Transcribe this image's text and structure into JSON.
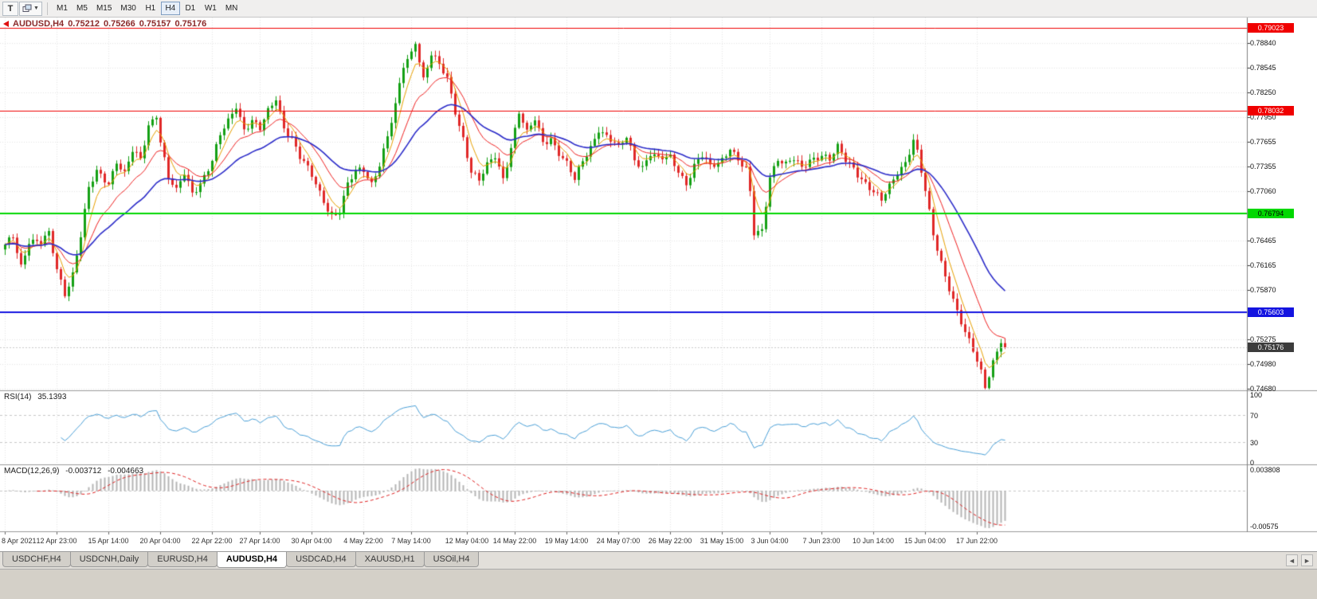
{
  "toolbar": {
    "templates_button": "T",
    "timeframes": [
      "M1",
      "M5",
      "M15",
      "M30",
      "H1",
      "H4",
      "D1",
      "W1",
      "MN"
    ],
    "active_timeframe": "H4"
  },
  "chart_header": {
    "symbol_timeframe": "AUDUSD,H4",
    "open": "0.75212",
    "high": "0.75266",
    "low": "0.75157",
    "close": "0.75176"
  },
  "tabs": {
    "items": [
      "USDCHF,H4",
      "USDCNH,Daily",
      "EURUSD,H4",
      "AUDUSD,H4",
      "USDCAD,H4",
      "XAUUSD,H1",
      "USOil,H4"
    ],
    "active": "AUDUSD,H4"
  },
  "chart_data": {
    "type": "candlestick",
    "symbol": "AUDUSD",
    "timeframe": "H4",
    "bar_count": 252,
    "colors": {
      "up": "#14a014",
      "down": "#e02828",
      "rsi": "#4aa0d8",
      "macd_histogram": "#b5b5b5",
      "macd_signal": "#e02020",
      "grid": "#e6e6e6",
      "background": "#ffffff"
    },
    "y_axis": {
      "price_max": 0.7915,
      "price_min": 0.7467,
      "tick_labels": [
        "0.78840",
        "0.78545",
        "0.78250",
        "0.77950",
        "0.77655",
        "0.77355",
        "0.77060",
        "0.76465",
        "0.76165",
        "0.75870",
        "0.75275",
        "0.74980",
        "0.74680"
      ]
    },
    "x_axis": {
      "labels": [
        [
          "8 Apr 2021",
          0
        ],
        [
          "12 Apr 23:00",
          13
        ],
        [
          "15 Apr 14:00",
          26
        ],
        [
          "20 Apr 04:00",
          39
        ],
        [
          "22 Apr 22:00",
          52
        ],
        [
          "27 Apr 14:00",
          64
        ],
        [
          "30 Apr 04:00",
          77
        ],
        [
          "4 May 22:00",
          90
        ],
        [
          "7 May 14:00",
          102
        ],
        [
          "12 May 04:00",
          116
        ],
        [
          "14 May 22:00",
          128
        ],
        [
          "19 May 14:00",
          141
        ],
        [
          "24 May 07:00",
          154
        ],
        [
          "26 May 22:00",
          167
        ],
        [
          "31 May 15:00",
          180
        ],
        [
          "3 Jun 04:00",
          192
        ],
        [
          "7 Jun 23:00",
          205
        ],
        [
          "10 Jun 14:00",
          218
        ],
        [
          "15 Jun 04:00",
          231
        ],
        [
          "17 Jun 22:00",
          244
        ]
      ]
    },
    "horizontal_lines": [
      {
        "price": 0.79023,
        "label": "0.79023",
        "color": "#f00000",
        "width": 1
      },
      {
        "price": 0.78032,
        "label": "0.78032",
        "color": "#f00000",
        "width": 1
      },
      {
        "price": 0.76794,
        "label": "0.76794",
        "color": "#00d800",
        "width": 2
      },
      {
        "price": 0.75603,
        "label": "0.75603",
        "color": "#1414e0",
        "width": 2
      }
    ],
    "current_price": {
      "value": 0.75176,
      "label": "0.75176",
      "box_color": "#3c3c3c"
    },
    "moving_averages": [
      {
        "period": 5,
        "color": "#e8a000",
        "width": 1
      },
      {
        "period": 13,
        "color": "#f02020",
        "width": 1
      },
      {
        "period": 30,
        "color": "#2c2cc9",
        "width": 1.6
      }
    ],
    "price_waypoints": [
      [
        0,
        0.7638
      ],
      [
        2,
        0.7652
      ],
      [
        4,
        0.7618
      ],
      [
        6,
        0.7648
      ],
      [
        9,
        0.7642
      ],
      [
        11,
        0.7652
      ],
      [
        13,
        0.7612
      ],
      [
        15,
        0.7585
      ],
      [
        17,
        0.7608
      ],
      [
        19,
        0.7652
      ],
      [
        21,
        0.7706
      ],
      [
        23,
        0.7728
      ],
      [
        26,
        0.7718
      ],
      [
        28,
        0.7744
      ],
      [
        30,
        0.7726
      ],
      [
        32,
        0.7752
      ],
      [
        34,
        0.7742
      ],
      [
        36,
        0.7786
      ],
      [
        38,
        0.7801
      ],
      [
        39,
        0.7768
      ],
      [
        41,
        0.7722
      ],
      [
        43,
        0.7703
      ],
      [
        45,
        0.7726
      ],
      [
        47,
        0.7705
      ],
      [
        49,
        0.7718
      ],
      [
        52,
        0.7742
      ],
      [
        54,
        0.7771
      ],
      [
        56,
        0.7788
      ],
      [
        58,
        0.781
      ],
      [
        60,
        0.7783
      ],
      [
        62,
        0.7792
      ],
      [
        64,
        0.7779
      ],
      [
        66,
        0.7799
      ],
      [
        68,
        0.7817
      ],
      [
        70,
        0.7785
      ],
      [
        72,
        0.7772
      ],
      [
        74,
        0.7747
      ],
      [
        77,
        0.7722
      ],
      [
        79,
        0.7703
      ],
      [
        82,
        0.7679
      ],
      [
        84,
        0.7683
      ],
      [
        86,
        0.7712
      ],
      [
        88,
        0.7727
      ],
      [
        90,
        0.7731
      ],
      [
        92,
        0.7717
      ],
      [
        94,
        0.7741
      ],
      [
        96,
        0.7771
      ],
      [
        98,
        0.7806
      ],
      [
        100,
        0.7855
      ],
      [
        102,
        0.7873
      ],
      [
        103,
        0.7889
      ],
      [
        105,
        0.7843
      ],
      [
        107,
        0.7871
      ],
      [
        109,
        0.7855
      ],
      [
        111,
        0.7839
      ],
      [
        113,
        0.7803
      ],
      [
        115,
        0.7772
      ],
      [
        117,
        0.7731
      ],
      [
        119,
        0.7717
      ],
      [
        121,
        0.7734
      ],
      [
        123,
        0.7748
      ],
      [
        125,
        0.7723
      ],
      [
        127,
        0.7761
      ],
      [
        129,
        0.7801
      ],
      [
        131,
        0.7773
      ],
      [
        133,
        0.7791
      ],
      [
        135,
        0.7766
      ],
      [
        137,
        0.7772
      ],
      [
        139,
        0.7753
      ],
      [
        141,
        0.7737
      ],
      [
        143,
        0.7717
      ],
      [
        145,
        0.7742
      ],
      [
        147,
        0.7761
      ],
      [
        149,
        0.7783
      ],
      [
        151,
        0.7771
      ],
      [
        154,
        0.7756
      ],
      [
        156,
        0.7771
      ],
      [
        158,
        0.7747
      ],
      [
        160,
        0.7737
      ],
      [
        162,
        0.7751
      ],
      [
        164,
        0.7742
      ],
      [
        167,
        0.7746
      ],
      [
        169,
        0.7733
      ],
      [
        171,
        0.7717
      ],
      [
        173,
        0.7736
      ],
      [
        175,
        0.7746
      ],
      [
        177,
        0.7733
      ],
      [
        180,
        0.7746
      ],
      [
        182,
        0.7761
      ],
      [
        184,
        0.7743
      ],
      [
        186,
        0.7729
      ],
      [
        187,
        0.7701
      ],
      [
        188,
        0.7653
      ],
      [
        190,
        0.7659
      ],
      [
        192,
        0.7727
      ],
      [
        194,
        0.7746
      ],
      [
        196,
        0.7736
      ],
      [
        198,
        0.7742
      ],
      [
        200,
        0.7733
      ],
      [
        202,
        0.7746
      ],
      [
        205,
        0.7751
      ],
      [
        207,
        0.7742
      ],
      [
        209,
        0.7756
      ],
      [
        211,
        0.7743
      ],
      [
        213,
        0.7736
      ],
      [
        215,
        0.7723
      ],
      [
        218,
        0.7703
      ],
      [
        220,
        0.7692
      ],
      [
        222,
        0.7711
      ],
      [
        224,
        0.7731
      ],
      [
        226,
        0.7743
      ],
      [
        228,
        0.7767
      ],
      [
        229,
        0.7751
      ],
      [
        231,
        0.7703
      ],
      [
        233,
        0.7653
      ],
      [
        235,
        0.7622
      ],
      [
        237,
        0.7592
      ],
      [
        239,
        0.7561
      ],
      [
        241,
        0.7532
      ],
      [
        243,
        0.7512
      ],
      [
        245,
        0.7489
      ],
      [
        246,
        0.7473
      ],
      [
        248,
        0.7503
      ],
      [
        250,
        0.7526
      ],
      [
        251,
        0.7518
      ]
    ],
    "indicators": {
      "rsi": {
        "name": "RSI(14)",
        "value_text": "35.1393",
        "period": 14,
        "axis_labels": [
          "100",
          "70",
          "30",
          "0"
        ],
        "level_lines": [
          70,
          30
        ]
      },
      "macd": {
        "name": "MACD(12,26,9)",
        "value_text": "-0.003712",
        "signal_text": "-0.004663",
        "fast": 12,
        "slow": 26,
        "signal": 9,
        "axis_labels": [
          "0.003808",
          "-0.00575"
        ]
      }
    }
  }
}
